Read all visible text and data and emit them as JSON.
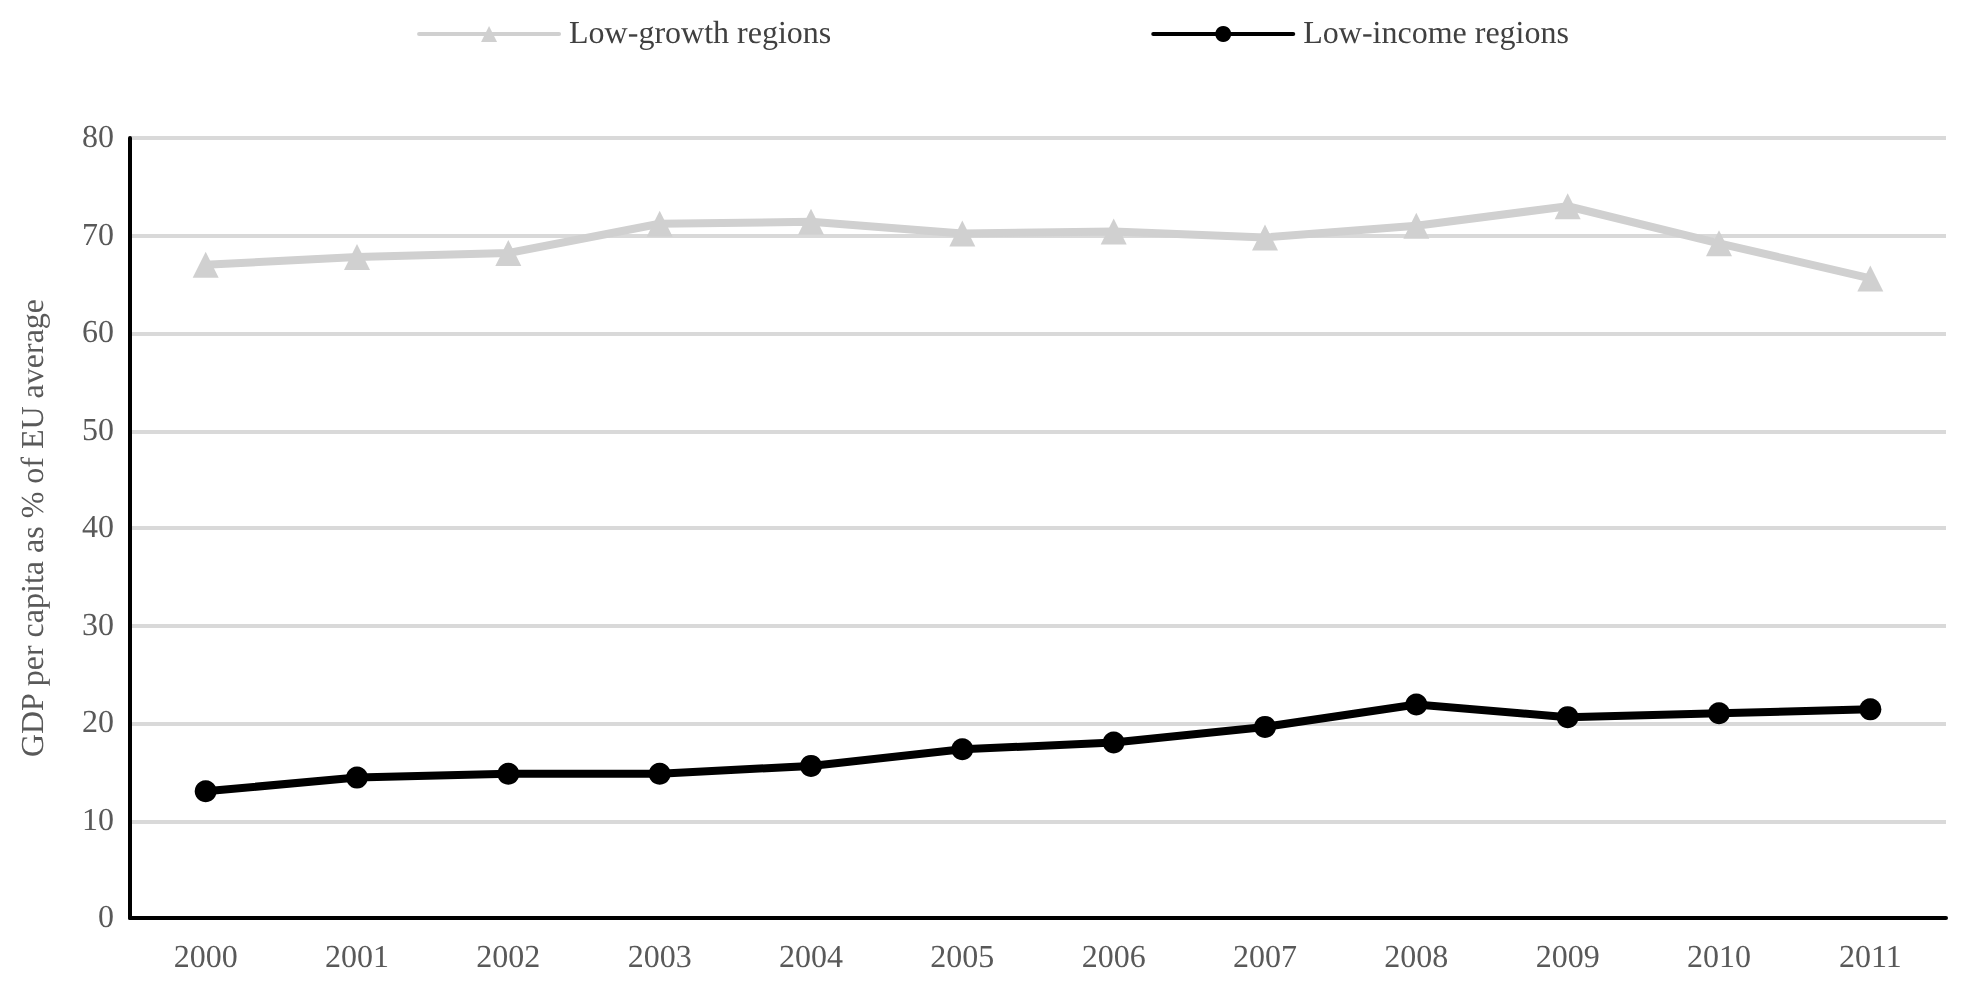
{
  "chart_data": {
    "type": "line",
    "ylabel": "GDP per capita as % of EU average",
    "categories": [
      "2000",
      "2001",
      "2002",
      "2003",
      "2004",
      "2005",
      "2006",
      "2007",
      "2008",
      "2009",
      "2010",
      "2011"
    ],
    "series": [
      {
        "name": "Low-growth regions",
        "color": "#d0d0d0",
        "marker": "triangle",
        "values": [
          67,
          67.8,
          68.2,
          71.2,
          71.4,
          70.2,
          70.4,
          69.8,
          71,
          73,
          69.2,
          65.6
        ]
      },
      {
        "name": "Low-income regions",
        "color": "#000000",
        "marker": "circle",
        "values": [
          13,
          14.4,
          14.8,
          14.8,
          15.6,
          17.3,
          18,
          19.6,
          21.9,
          20.6,
          21,
          21.4
        ]
      }
    ],
    "ylim": [
      0,
      80
    ],
    "yticks": [
      0,
      10,
      20,
      30,
      40,
      50,
      60,
      70,
      80
    ],
    "grid": "y",
    "legend": "top",
    "line_style": "solid"
  }
}
